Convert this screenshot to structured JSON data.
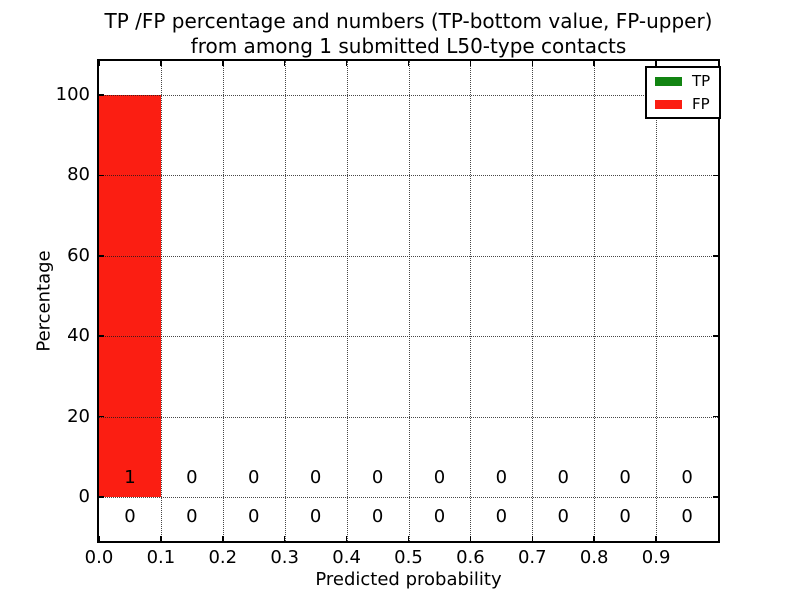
{
  "figure": {
    "title_line1": "TP /FP percentage and numbers (TP-bottom value, FP-upper)",
    "title_line2": "from among 1 submitted L50-type contacts",
    "background_color": "#ffffff"
  },
  "axes": {
    "x_label": "Predicted probability",
    "y_label": "Percentage",
    "x_ticks": [
      {
        "label": "0.0",
        "value": 0.0
      },
      {
        "label": "0.1",
        "value": 0.1
      },
      {
        "label": "0.2",
        "value": 0.2
      },
      {
        "label": "0.3",
        "value": 0.3
      },
      {
        "label": "0.4",
        "value": 0.4
      },
      {
        "label": "0.5",
        "value": 0.5
      },
      {
        "label": "0.6",
        "value": 0.6
      },
      {
        "label": "0.7",
        "value": 0.7
      },
      {
        "label": "0.8",
        "value": 0.8
      },
      {
        "label": "0.9",
        "value": 0.9
      }
    ],
    "y_ticks": [
      {
        "label": "0",
        "value": 0
      },
      {
        "label": "20",
        "value": 20
      },
      {
        "label": "40",
        "value": 40
      },
      {
        "label": "60",
        "value": 60
      },
      {
        "label": "80",
        "value": 80
      },
      {
        "label": "100",
        "value": 100
      }
    ],
    "grid_style": "dotted",
    "grid_color": "#000000",
    "spine_color": "#000000"
  },
  "legend": {
    "items": [
      {
        "label": "TP",
        "color": "#128412"
      },
      {
        "label": "FP",
        "color": "#fb1e12"
      }
    ]
  },
  "chart_data": {
    "type": "bar",
    "title": "TP /FP percentage and numbers (TP-bottom value, FP-upper) from among 1 submitted L50-type contacts",
    "xlabel": "Predicted probability",
    "ylabel": "Percentage",
    "bin_edges": [
      0.0,
      0.1,
      0.2,
      0.3,
      0.4,
      0.5,
      0.6,
      0.7,
      0.8,
      0.9,
      1.0
    ],
    "xlim": [
      0.0,
      1.0
    ],
    "ylim": [
      -11,
      109
    ],
    "grid": true,
    "legend_position": "upper right",
    "series": [
      {
        "name": "TP",
        "color": "#128412",
        "stack_order": 1,
        "percentages": [
          0,
          0,
          0,
          0,
          0,
          0,
          0,
          0,
          0,
          0
        ],
        "counts": [
          0,
          0,
          0,
          0,
          0,
          0,
          0,
          0,
          0,
          0
        ],
        "count_row": "bottom"
      },
      {
        "name": "FP",
        "color": "#fb1e12",
        "stack_order": 2,
        "percentages": [
          100,
          0,
          0,
          0,
          0,
          0,
          0,
          0,
          0,
          0
        ],
        "counts": [
          1,
          0,
          0,
          0,
          0,
          0,
          0,
          0,
          0,
          0
        ],
        "count_row": "upper"
      }
    ]
  }
}
